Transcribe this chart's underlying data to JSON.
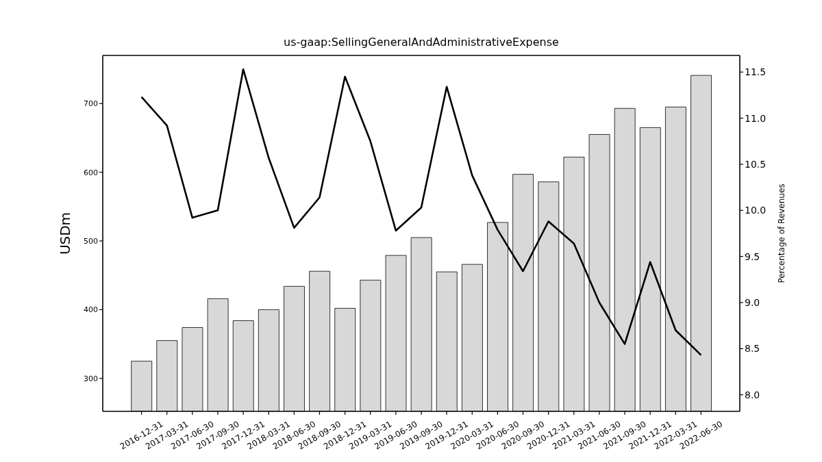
{
  "chart_data": {
    "type": "bar",
    "title": "us-gaap:SellingGeneralAndAdministrativeExpense",
    "ylabel": "USDm",
    "y2label": "Percentage of Revenues",
    "categories": [
      "2016-12-31",
      "2017-03-31",
      "2017-06-30",
      "2017-09-30",
      "2017-12-31",
      "2018-03-31",
      "2018-06-30",
      "2018-09-30",
      "2018-12-31",
      "2019-03-31",
      "2019-06-30",
      "2019-09-30",
      "2019-12-31",
      "2020-03-31",
      "2020-06-30",
      "2020-09-30",
      "2020-12-31",
      "2021-03-31",
      "2021-06-30",
      "2021-09-30",
      "2021-12-31",
      "2022-03-31",
      "2022-06-30"
    ],
    "series": [
      {
        "color": "#d8d8d8",
        "values": [
          325,
          355,
          374,
          416,
          384,
          400,
          434,
          456,
          402,
          443,
          479,
          505,
          455,
          466,
          527,
          597,
          586,
          622,
          655,
          693,
          665,
          695,
          741
        ]
      },
      {
        "type": "line",
        "axis": "y2",
        "color": "#000000",
        "values": [
          11.23,
          10.92,
          9.92,
          10.0,
          11.53,
          10.57,
          9.81,
          10.14,
          11.45,
          10.75,
          9.78,
          10.03,
          11.34,
          10.38,
          9.79,
          9.34,
          9.88,
          9.64,
          9.0,
          8.55,
          9.44,
          8.7,
          8.43
        ]
      }
    ],
    "ylim": [
      252,
      770
    ],
    "yticks": [
      300,
      400,
      500,
      600,
      700
    ],
    "y2lim": [
      7.82,
      11.68
    ],
    "y2ticks": [
      {
        "value": 8,
        "label": "8.0"
      },
      8.5,
      {
        "value": 9,
        "label": "9.0"
      },
      9.5,
      {
        "value": 10,
        "label": "10.0"
      },
      10.5,
      {
        "value": 11,
        "label": "11.0"
      },
      11.5
    ],
    "marker": "none",
    "line_style": "solid"
  }
}
